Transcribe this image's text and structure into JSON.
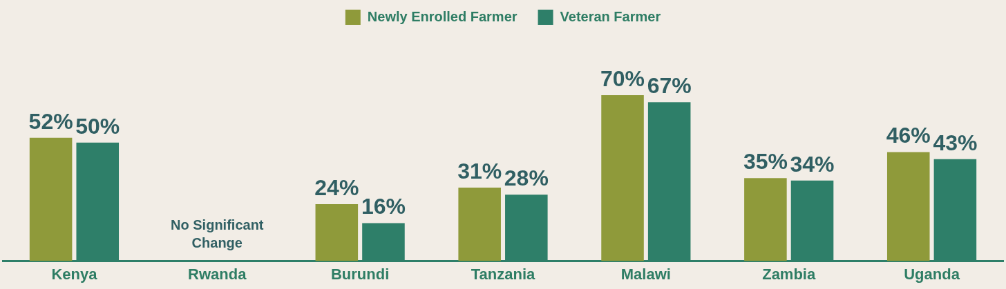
{
  "chart_data": {
    "type": "bar",
    "categories": [
      "Kenya",
      "Rwanda",
      "Burundi",
      "Tanzania",
      "Malawi",
      "Zambia",
      "Uganda"
    ],
    "series": [
      {
        "name": "Newly Enrolled Farmer",
        "color": "#8f9a3a",
        "values": [
          52,
          null,
          24,
          31,
          70,
          35,
          46
        ],
        "value_labels": [
          "52%",
          null,
          "24%",
          "31%",
          "70%",
          "35%",
          "46%"
        ]
      },
      {
        "name": "Veteran Farmer",
        "color": "#2e7f69",
        "values": [
          50,
          null,
          16,
          28,
          67,
          34,
          43
        ],
        "value_labels": [
          "50%",
          null,
          "16%",
          "28%",
          "67%",
          "34%",
          "43%"
        ]
      }
    ],
    "annotations": [
      "No Significant Change"
    ],
    "legend": "top",
    "tick_labels": "x"
  }
}
